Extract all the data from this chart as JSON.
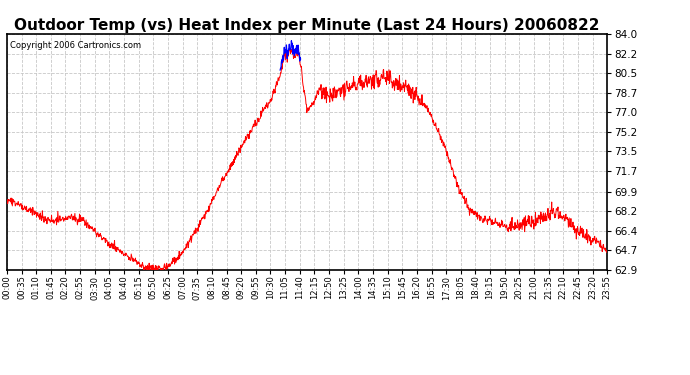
{
  "title": "Outdoor Temp (vs) Heat Index per Minute (Last 24 Hours) 20060822",
  "copyright": "Copyright 2006 Cartronics.com",
  "title_fontsize": 11,
  "copyright_fontsize": 6,
  "background_color": "#ffffff",
  "plot_bg_color": "#ffffff",
  "grid_color": "#c8c8c8",
  "line_color_red": "#ff0000",
  "line_color_blue": "#0000ff",
  "yticks": [
    62.9,
    64.7,
    66.4,
    68.2,
    69.9,
    71.7,
    73.5,
    75.2,
    77.0,
    78.7,
    80.5,
    82.2,
    84.0
  ],
  "xtick_labels": [
    "00:00",
    "00:35",
    "01:10",
    "01:45",
    "02:20",
    "02:55",
    "03:30",
    "04:05",
    "04:40",
    "05:15",
    "05:50",
    "06:25",
    "07:00",
    "07:35",
    "08:10",
    "08:45",
    "09:20",
    "09:55",
    "10:30",
    "11:05",
    "11:40",
    "12:15",
    "12:50",
    "13:25",
    "14:00",
    "14:35",
    "15:10",
    "15:45",
    "16:20",
    "16:55",
    "17:30",
    "18:05",
    "18:40",
    "19:15",
    "19:50",
    "20:25",
    "21:00",
    "21:35",
    "22:10",
    "22:45",
    "23:20",
    "23:55"
  ],
  "ylim": [
    62.9,
    84.0
  ],
  "figsize": [
    6.9,
    3.75
  ],
  "dpi": 100
}
